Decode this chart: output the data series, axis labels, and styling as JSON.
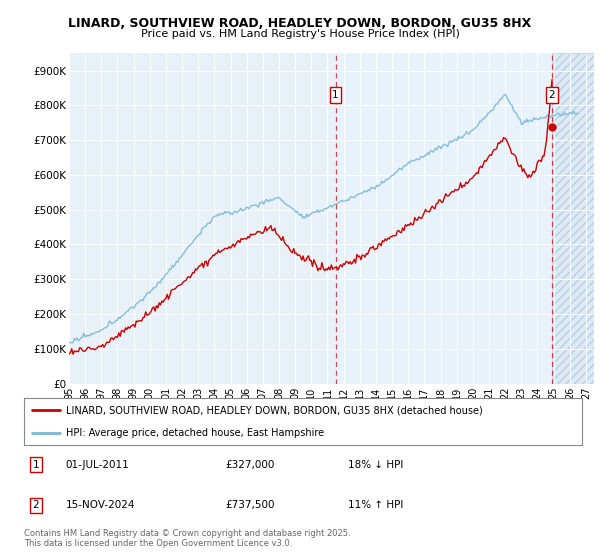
{
  "title1": "LINARD, SOUTHVIEW ROAD, HEADLEY DOWN, BORDON, GU35 8HX",
  "title2": "Price paid vs. HM Land Registry's House Price Index (HPI)",
  "xlim_start": 1995.0,
  "xlim_end": 2027.5,
  "ylim_min": 0,
  "ylim_max": 950000,
  "yticks": [
    0,
    100000,
    200000,
    300000,
    400000,
    500000,
    600000,
    700000,
    800000,
    900000
  ],
  "ytick_labels": [
    "£0",
    "£100K",
    "£200K",
    "£300K",
    "£400K",
    "£500K",
    "£600K",
    "£700K",
    "£800K",
    "£900K"
  ],
  "hpi_color": "#7ab8d9",
  "price_color": "#cc0000",
  "marker1_date": 2011.5,
  "marker1_price": 327000,
  "marker1_label": "1",
  "marker2_date": 2024.88,
  "marker2_price": 737500,
  "marker2_label": "2",
  "legend_line1": "LINARD, SOUTHVIEW ROAD, HEADLEY DOWN, BORDON, GU35 8HX (detached house)",
  "legend_line2": "HPI: Average price, detached house, East Hampshire",
  "annotation1_date": "01-JUL-2011",
  "annotation1_price": "£327,000",
  "annotation1_hpi": "18% ↓ HPI",
  "annotation2_date": "15-NOV-2024",
  "annotation2_price": "£737,500",
  "annotation2_hpi": "11% ↑ HPI",
  "footer": "Contains HM Land Registry data © Crown copyright and database right 2025.\nThis data is licensed under the Open Government Licence v3.0.",
  "bg_color": "#e8f0f8",
  "bg_color_left": "#e0e8f2",
  "bg_color_right": "#ddeaf6",
  "hatch_color": "#c8d8ea",
  "future_start": 2024.88,
  "shade_from": 2011.5
}
